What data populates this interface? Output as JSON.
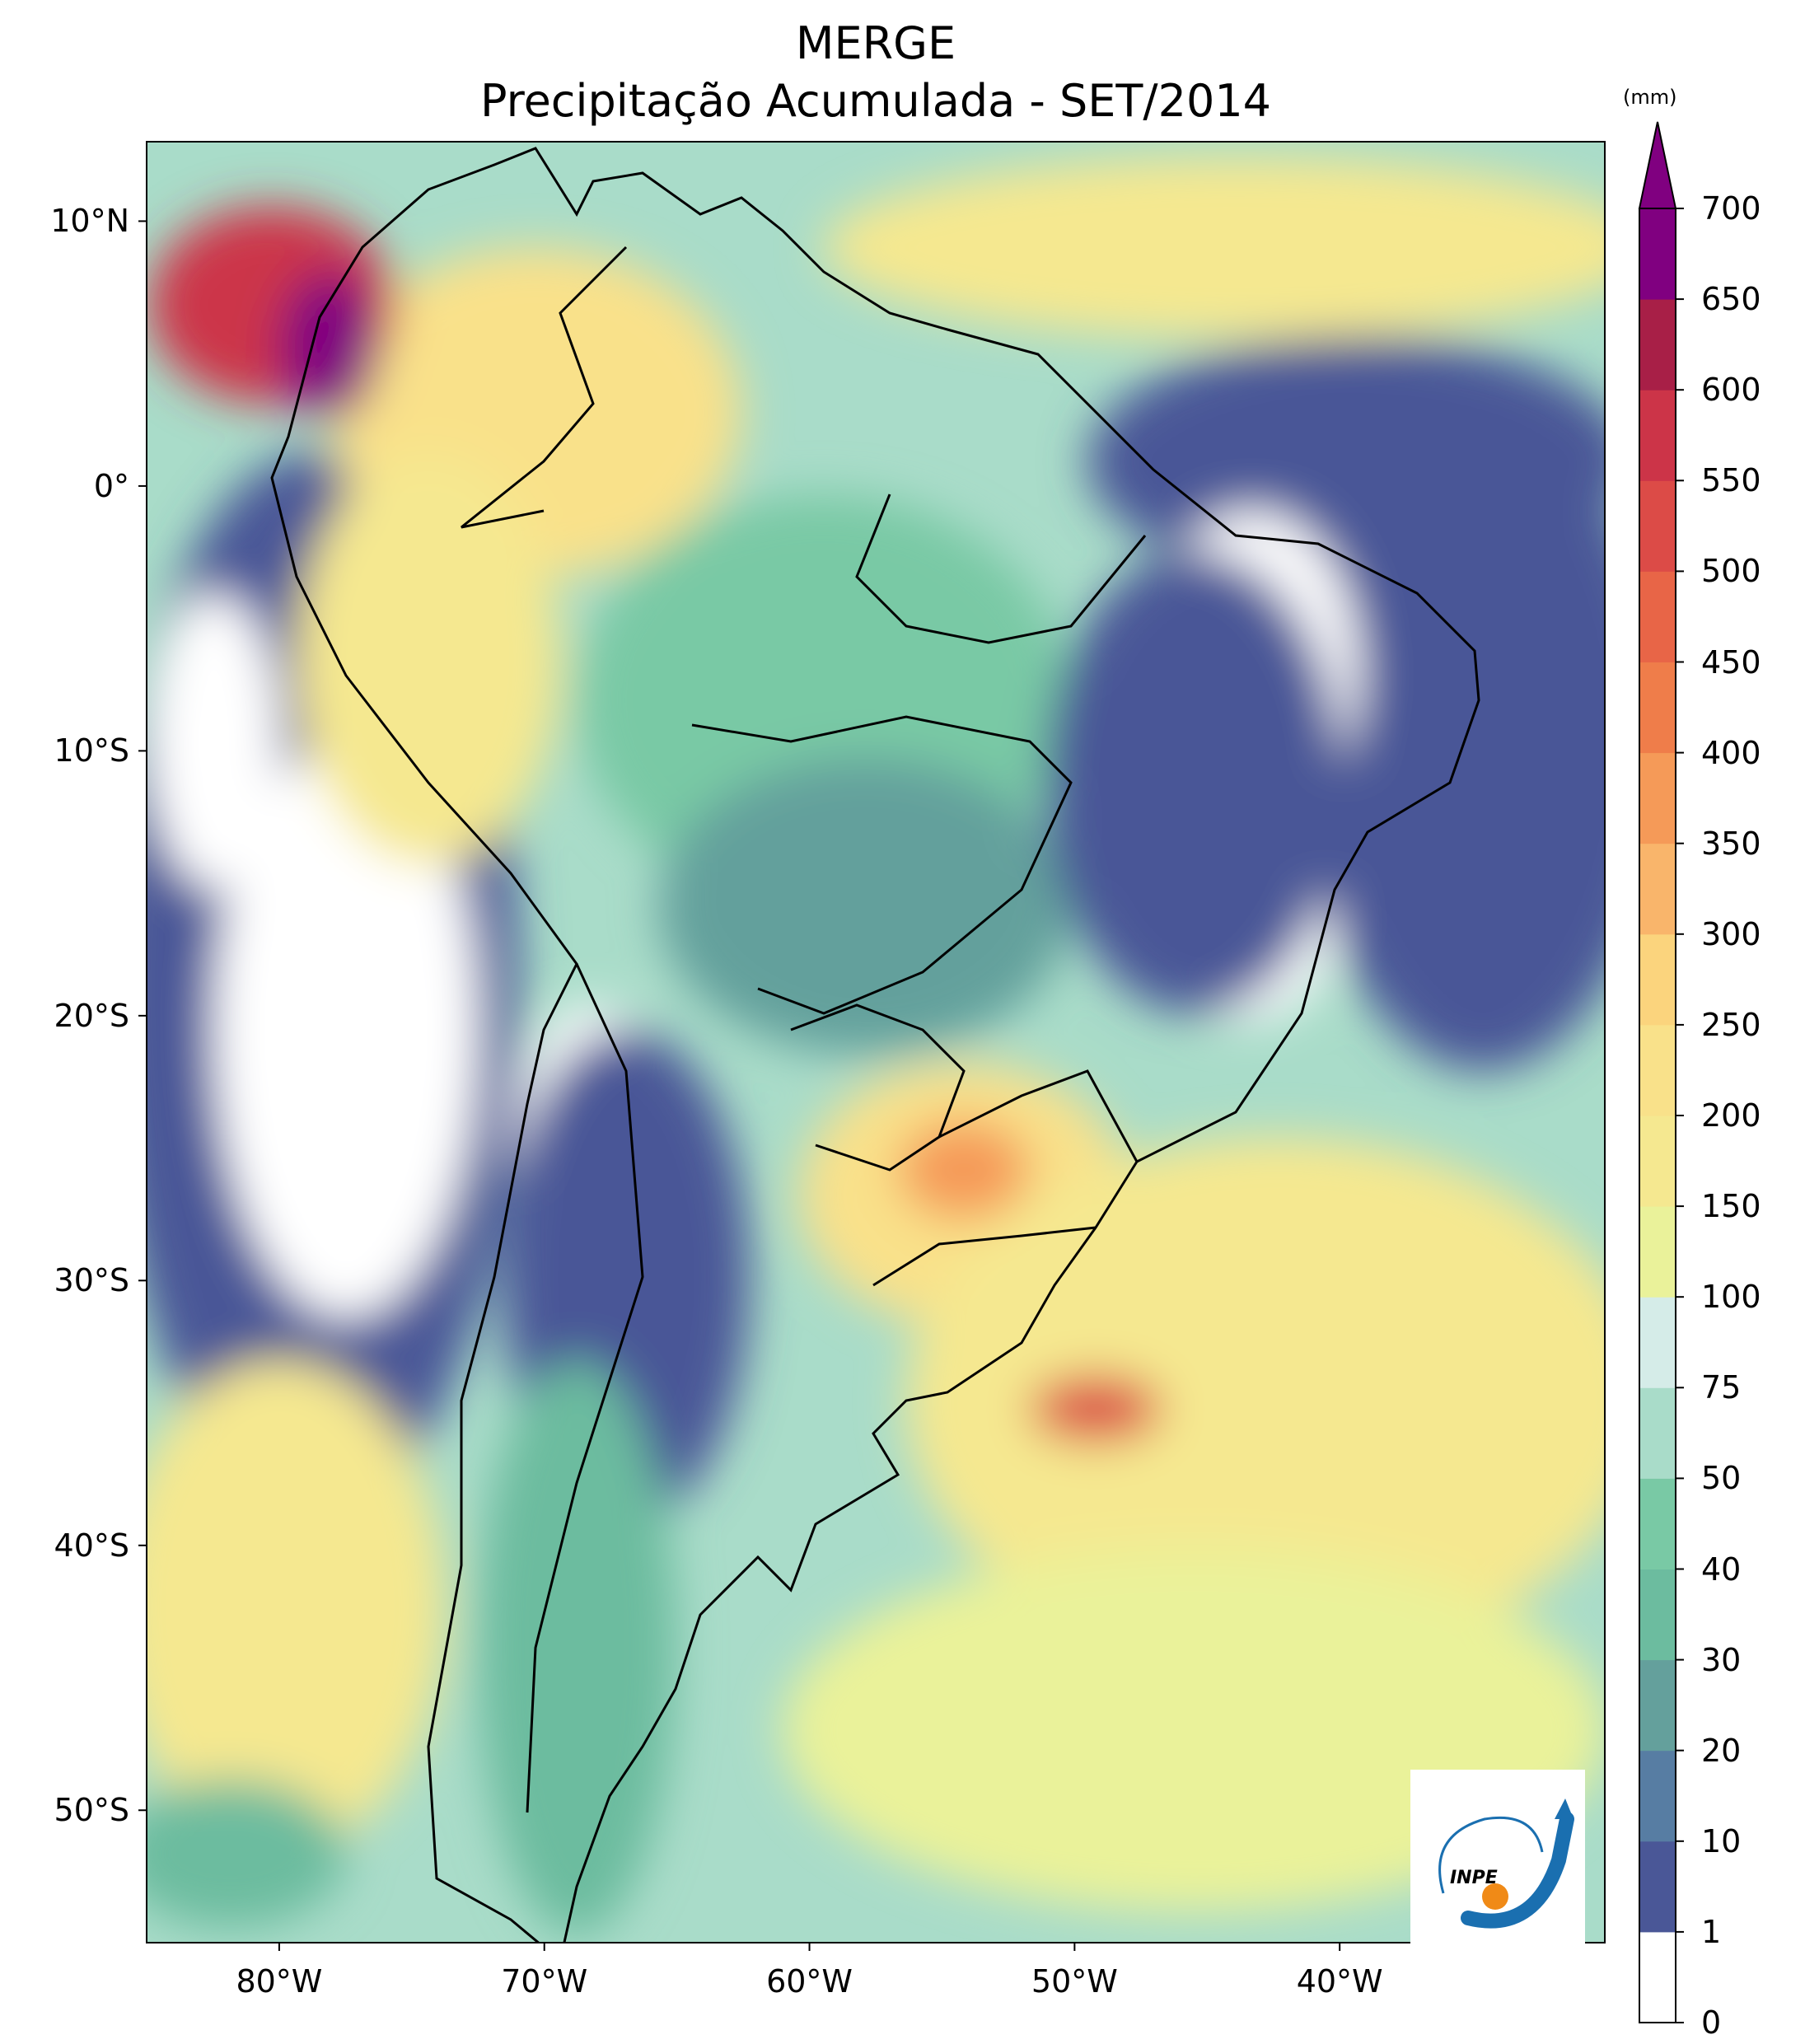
{
  "title": {
    "line1": "MERGE",
    "line2": "Precipitação Acumulada - SET/2014"
  },
  "map": {
    "extent": {
      "lon_min": -85,
      "lon_max": -30,
      "lat_min": -55,
      "lat_max": 13
    },
    "lat_ticks": [
      {
        "value": 10,
        "label": "10°N"
      },
      {
        "value": 0,
        "label": "0°"
      },
      {
        "value": -10,
        "label": "10°S"
      },
      {
        "value": -20,
        "label": "20°S"
      },
      {
        "value": -30,
        "label": "30°S"
      },
      {
        "value": -40,
        "label": "40°S"
      },
      {
        "value": -50,
        "label": "50°S"
      }
    ],
    "lon_ticks": [
      {
        "value": -80,
        "label": "80°W"
      },
      {
        "value": -70,
        "label": "70°W"
      },
      {
        "value": -60,
        "label": "60°W"
      },
      {
        "value": -50,
        "label": "50°W"
      },
      {
        "value": -40,
        "label": "40°W"
      }
    ]
  },
  "colorbar": {
    "unit": "(mm)",
    "levels": [
      "0",
      "1",
      "10",
      "20",
      "30",
      "40",
      "50",
      "75",
      "100",
      "150",
      "200",
      "250",
      "300",
      "350",
      "400",
      "450",
      "500",
      "550",
      "600",
      "650",
      "700"
    ],
    "colors": [
      "#ffffff",
      "#4a5797",
      "#577da3",
      "#64a09c",
      "#6cbc9f",
      "#79c9a5",
      "#a9dcc9",
      "#d5ece8",
      "#eaf29a",
      "#f5e890",
      "#f9e18a",
      "#fbd47d",
      "#f9b56b",
      "#f59a58",
      "#ef7d4a",
      "#e86547",
      "#dc4b47",
      "#cc3448",
      "#a81f47",
      "#800080"
    ],
    "extend_color": "#800080"
  },
  "logo": {
    "text": "INPE"
  }
}
